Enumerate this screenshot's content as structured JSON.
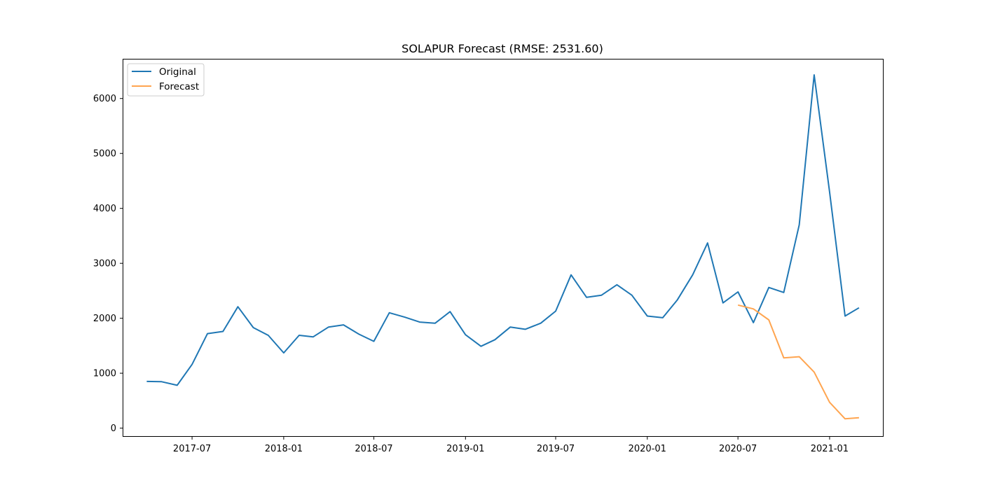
{
  "chart_data": {
    "type": "line",
    "title": "SOLAPUR Forecast (RMSE: 2531.60)",
    "xlabel": "",
    "ylabel": "",
    "x_range": [
      "2017-02-13",
      "2021-04-18"
    ],
    "ylim": [
      -145,
      6710
    ],
    "xticks": [
      {
        "date": "2017-07-01",
        "label": "2017-07"
      },
      {
        "date": "2018-01-01",
        "label": "2018-01"
      },
      {
        "date": "2018-07-01",
        "label": "2018-07"
      },
      {
        "date": "2019-01-01",
        "label": "2019-01"
      },
      {
        "date": "2019-07-01",
        "label": "2019-07"
      },
      {
        "date": "2020-01-01",
        "label": "2020-01"
      },
      {
        "date": "2020-07-01",
        "label": "2020-07"
      },
      {
        "date": "2021-01-01",
        "label": "2021-01"
      }
    ],
    "yticks": [
      0,
      1000,
      2000,
      3000,
      4000,
      5000,
      6000
    ],
    "legend_position": "top-left",
    "series": [
      {
        "name": "Original",
        "color": "#1f77b4",
        "points": [
          [
            "2017-04-01",
            850
          ],
          [
            "2017-05-01",
            845
          ],
          [
            "2017-06-01",
            780
          ],
          [
            "2017-07-01",
            1160
          ],
          [
            "2017-08-01",
            1720
          ],
          [
            "2017-09-01",
            1760
          ],
          [
            "2017-10-01",
            2210
          ],
          [
            "2017-11-01",
            1830
          ],
          [
            "2017-12-01",
            1690
          ],
          [
            "2018-01-01",
            1370
          ],
          [
            "2018-02-01",
            1690
          ],
          [
            "2018-03-01",
            1660
          ],
          [
            "2018-04-01",
            1840
          ],
          [
            "2018-05-01",
            1880
          ],
          [
            "2018-06-01",
            1710
          ],
          [
            "2018-07-01",
            1580
          ],
          [
            "2018-08-01",
            2100
          ],
          [
            "2018-09-01",
            2020
          ],
          [
            "2018-10-01",
            1930
          ],
          [
            "2018-11-01",
            1910
          ],
          [
            "2018-12-01",
            2120
          ],
          [
            "2019-01-01",
            1700
          ],
          [
            "2019-02-01",
            1490
          ],
          [
            "2019-03-01",
            1610
          ],
          [
            "2019-04-01",
            1840
          ],
          [
            "2019-05-01",
            1800
          ],
          [
            "2019-06-01",
            1910
          ],
          [
            "2019-07-01",
            2130
          ],
          [
            "2019-08-01",
            2790
          ],
          [
            "2019-09-01",
            2380
          ],
          [
            "2019-10-01",
            2420
          ],
          [
            "2019-11-01",
            2610
          ],
          [
            "2019-12-01",
            2420
          ],
          [
            "2020-01-01",
            2040
          ],
          [
            "2020-02-01",
            2010
          ],
          [
            "2020-03-01",
            2330
          ],
          [
            "2020-04-01",
            2790
          ],
          [
            "2020-05-01",
            3370
          ],
          [
            "2020-06-01",
            2280
          ],
          [
            "2020-07-01",
            2480
          ],
          [
            "2020-08-01",
            1920
          ],
          [
            "2020-09-01",
            2560
          ],
          [
            "2020-10-01",
            2470
          ],
          [
            "2020-11-01",
            3700
          ],
          [
            "2020-12-01",
            6430
          ],
          [
            "2021-01-01",
            4300
          ],
          [
            "2021-02-01",
            2040
          ],
          [
            "2021-03-01",
            2190
          ]
        ]
      },
      {
        "name": "Forecast",
        "color": "#ffa550",
        "points": [
          [
            "2020-07-01",
            2240
          ],
          [
            "2020-08-01",
            2170
          ],
          [
            "2020-09-01",
            1970
          ],
          [
            "2020-10-01",
            1280
          ],
          [
            "2020-11-01",
            1300
          ],
          [
            "2020-12-01",
            1020
          ],
          [
            "2021-01-01",
            470
          ],
          [
            "2021-02-01",
            170
          ],
          [
            "2021-03-01",
            190
          ]
        ]
      }
    ]
  }
}
